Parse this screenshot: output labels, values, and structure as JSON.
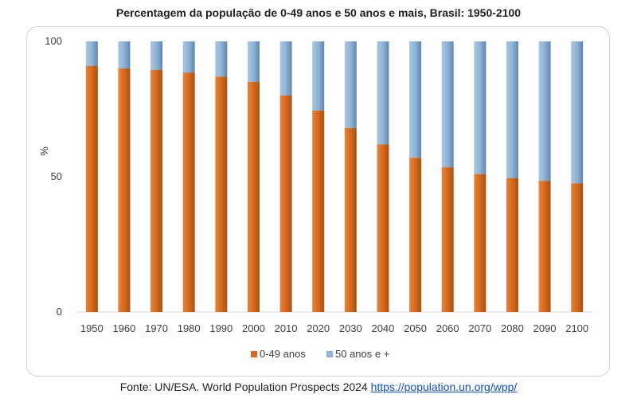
{
  "chart_data": {
    "type": "bar",
    "stacked": true,
    "title": "Percentagem da população de 0-49 anos e 50 anos e mais, Brasil: 1950-2100",
    "xlabel": "",
    "ylabel": "%",
    "ylim": [
      0,
      100
    ],
    "yticks": [
      0,
      50,
      100
    ],
    "grid": false,
    "legend_position": "bottom",
    "categories": [
      "1950",
      "1960",
      "1970",
      "1980",
      "1990",
      "2000",
      "2010",
      "2020",
      "2030",
      "2040",
      "2050",
      "2060",
      "2070",
      "2080",
      "2090",
      "2100"
    ],
    "series": [
      {
        "name": "0-49 anos",
        "color": "#d4691f",
        "values": [
          91,
          90,
          89.5,
          88.5,
          87,
          85,
          80,
          74.5,
          68,
          62,
          57,
          53.5,
          51,
          49.5,
          48.5,
          47.5
        ]
      },
      {
        "name": "50 anos e +",
        "color": "#8fb3d6",
        "values": [
          9,
          10,
          10.5,
          11.5,
          13,
          15,
          20,
          25.5,
          32,
          38,
          43,
          46.5,
          49,
          50.5,
          51.5,
          52.5
        ]
      }
    ]
  },
  "source": {
    "text": "Fonte: UN/ESA. World Population Prospects 2024",
    "link_text": "https://population.un.org/wpp/"
  }
}
